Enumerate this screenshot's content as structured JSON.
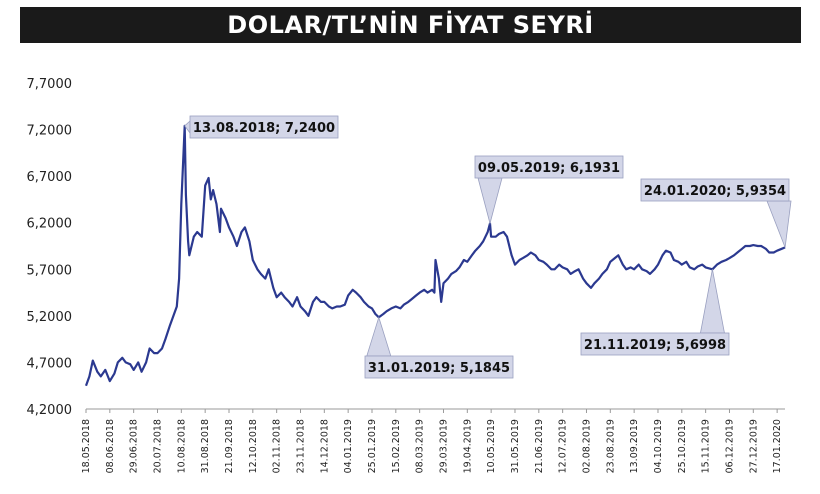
{
  "chart_data": {
    "type": "line",
    "title": "DOLAR/TL’NİN FİYAT SEYRİ",
    "xlabel": "",
    "ylabel": "",
    "ylim": [
      4.2,
      7.7
    ],
    "yticks": [
      "4,2000",
      "4,7000",
      "5,2000",
      "5,7000",
      "6,2000",
      "6,7000",
      "7,2000",
      "7,7000"
    ],
    "grid": false,
    "line_color": "#2b3990",
    "x_categories": [
      "18.05.2018",
      "08.06.2018",
      "29.06.2018",
      "20.07.2018",
      "10.08.2018",
      "31.08.2018",
      "21.09.2018",
      "12.10.2018",
      "02.11.2018",
      "23.11.2018",
      "14.12.2018",
      "04.01.2019",
      "25.01.2019",
      "15.02.2019",
      "08.03.2019",
      "29.03.2019",
      "19.04.2019",
      "10.05.2019",
      "31.05.2019",
      "21.06.2019",
      "12.07.2019",
      "02.08.2019",
      "23.08.2019",
      "13.09.2019",
      "04.10.2019",
      "25.10.2019",
      "15.11.2019",
      "06.12.2019",
      "27.12.2019",
      "17.01.2020"
    ],
    "series": [
      {
        "points": [
          [
            "18.05.2018",
            4.45
          ],
          [
            "21.05.2018",
            4.55
          ],
          [
            "24.05.2018",
            4.72
          ],
          [
            "28.05.2018",
            4.6
          ],
          [
            "31.05.2018",
            4.55
          ],
          [
            "04.06.2018",
            4.62
          ],
          [
            "08.06.2018",
            4.5
          ],
          [
            "12.06.2018",
            4.58
          ],
          [
            "15.06.2018",
            4.7
          ],
          [
            "19.06.2018",
            4.75
          ],
          [
            "22.06.2018",
            4.7
          ],
          [
            "26.06.2018",
            4.68
          ],
          [
            "29.06.2018",
            4.62
          ],
          [
            "03.07.2018",
            4.7
          ],
          [
            "06.07.2018",
            4.6
          ],
          [
            "10.07.2018",
            4.7
          ],
          [
            "13.07.2018",
            4.85
          ],
          [
            "17.07.2018",
            4.8
          ],
          [
            "20.07.2018",
            4.8
          ],
          [
            "24.07.2018",
            4.85
          ],
          [
            "27.07.2018",
            4.95
          ],
          [
            "31.07.2018",
            5.1
          ],
          [
            "03.08.2018",
            5.2
          ],
          [
            "06.08.2018",
            5.3
          ],
          [
            "08.08.2018",
            5.6
          ],
          [
            "10.08.2018",
            6.4
          ],
          [
            "13.08.2018",
            7.24
          ],
          [
            "14.08.2018",
            6.5
          ],
          [
            "16.08.2018",
            6.0
          ],
          [
            "17.08.2018",
            5.85
          ],
          [
            "21.08.2018",
            6.05
          ],
          [
            "24.08.2018",
            6.1
          ],
          [
            "28.08.2018",
            6.05
          ],
          [
            "31.08.2018",
            6.6
          ],
          [
            "03.09.2018",
            6.68
          ],
          [
            "05.09.2018",
            6.45
          ],
          [
            "07.09.2018",
            6.55
          ],
          [
            "10.09.2018",
            6.4
          ],
          [
            "13.09.2018",
            6.1
          ],
          [
            "14.09.2018",
            6.35
          ],
          [
            "18.09.2018",
            6.25
          ],
          [
            "21.09.2018",
            6.15
          ],
          [
            "25.09.2018",
            6.05
          ],
          [
            "28.09.2018",
            5.95
          ],
          [
            "02.10.2018",
            6.1
          ],
          [
            "05.10.2018",
            6.15
          ],
          [
            "09.10.2018",
            6.0
          ],
          [
            "12.10.2018",
            5.8
          ],
          [
            "16.10.2018",
            5.7
          ],
          [
            "19.10.2018",
            5.65
          ],
          [
            "23.10.2018",
            5.6
          ],
          [
            "26.10.2018",
            5.7
          ],
          [
            "30.10.2018",
            5.5
          ],
          [
            "02.11.2018",
            5.4
          ],
          [
            "06.11.2018",
            5.45
          ],
          [
            "09.11.2018",
            5.4
          ],
          [
            "13.11.2018",
            5.35
          ],
          [
            "16.11.2018",
            5.3
          ],
          [
            "20.11.2018",
            5.4
          ],
          [
            "23.11.2018",
            5.3
          ],
          [
            "27.11.2018",
            5.25
          ],
          [
            "30.11.2018",
            5.2
          ],
          [
            "04.12.2018",
            5.35
          ],
          [
            "07.12.2018",
            5.4
          ],
          [
            "11.12.2018",
            5.35
          ],
          [
            "14.12.2018",
            5.35
          ],
          [
            "18.12.2018",
            5.3
          ],
          [
            "21.12.2018",
            5.28
          ],
          [
            "25.12.2018",
            5.3
          ],
          [
            "28.12.2018",
            5.3
          ],
          [
            "01.01.2019",
            5.32
          ],
          [
            "04.01.2019",
            5.42
          ],
          [
            "08.01.2019",
            5.48
          ],
          [
            "11.01.2019",
            5.45
          ],
          [
            "15.01.2019",
            5.4
          ],
          [
            "18.01.2019",
            5.35
          ],
          [
            "22.01.2019",
            5.3
          ],
          [
            "25.01.2019",
            5.28
          ],
          [
            "28.01.2019",
            5.22
          ],
          [
            "31.01.2019",
            5.1845
          ],
          [
            "04.02.2019",
            5.22
          ],
          [
            "07.02.2019",
            5.25
          ],
          [
            "11.02.2019",
            5.28
          ],
          [
            "15.02.2019",
            5.3
          ],
          [
            "19.02.2019",
            5.28
          ],
          [
            "22.02.2019",
            5.32
          ],
          [
            "26.02.2019",
            5.35
          ],
          [
            "01.03.2019",
            5.38
          ],
          [
            "05.03.2019",
            5.42
          ],
          [
            "08.03.2019",
            5.45
          ],
          [
            "12.03.2019",
            5.48
          ],
          [
            "15.03.2019",
            5.45
          ],
          [
            "19.03.2019",
            5.48
          ],
          [
            "21.03.2019",
            5.45
          ],
          [
            "22.03.2019",
            5.8
          ],
          [
            "25.03.2019",
            5.6
          ],
          [
            "27.03.2019",
            5.35
          ],
          [
            "29.03.2019",
            5.55
          ],
          [
            "02.04.2019",
            5.6
          ],
          [
            "05.04.2019",
            5.65
          ],
          [
            "09.04.2019",
            5.68
          ],
          [
            "12.04.2019",
            5.72
          ],
          [
            "16.04.2019",
            5.8
          ],
          [
            "19.04.2019",
            5.78
          ],
          [
            "23.04.2019",
            5.85
          ],
          [
            "26.04.2019",
            5.9
          ],
          [
            "30.04.2019",
            5.95
          ],
          [
            "03.05.2019",
            6.0
          ],
          [
            "07.05.2019",
            6.1
          ],
          [
            "09.05.2019",
            6.1931
          ],
          [
            "10.05.2019",
            6.05
          ],
          [
            "14.05.2019",
            6.05
          ],
          [
            "17.05.2019",
            6.08
          ],
          [
            "21.05.2019",
            6.1
          ],
          [
            "24.05.2019",
            6.05
          ],
          [
            "28.05.2019",
            5.85
          ],
          [
            "31.05.2019",
            5.75
          ],
          [
            "04.06.2019",
            5.8
          ],
          [
            "07.06.2019",
            5.82
          ],
          [
            "11.06.2019",
            5.85
          ],
          [
            "14.06.2019",
            5.88
          ],
          [
            "18.06.2019",
            5.85
          ],
          [
            "21.06.2019",
            5.8
          ],
          [
            "25.06.2019",
            5.78
          ],
          [
            "28.06.2019",
            5.75
          ],
          [
            "02.07.2019",
            5.7
          ],
          [
            "05.07.2019",
            5.7
          ],
          [
            "09.07.2019",
            5.75
          ],
          [
            "12.07.2019",
            5.72
          ],
          [
            "16.07.2019",
            5.7
          ],
          [
            "19.07.2019",
            5.65
          ],
          [
            "23.07.2019",
            5.68
          ],
          [
            "26.07.2019",
            5.7
          ],
          [
            "30.07.2019",
            5.6
          ],
          [
            "02.08.2019",
            5.55
          ],
          [
            "06.08.2019",
            5.5
          ],
          [
            "09.08.2019",
            5.55
          ],
          [
            "13.08.2019",
            5.6
          ],
          [
            "16.08.2019",
            5.65
          ],
          [
            "20.08.2019",
            5.7
          ],
          [
            "23.08.2019",
            5.78
          ],
          [
            "27.08.2019",
            5.82
          ],
          [
            "30.08.2019",
            5.85
          ],
          [
            "03.09.2019",
            5.75
          ],
          [
            "06.09.2019",
            5.7
          ],
          [
            "10.09.2019",
            5.72
          ],
          [
            "13.09.2019",
            5.7
          ],
          [
            "17.09.2019",
            5.75
          ],
          [
            "20.09.2019",
            5.7
          ],
          [
            "24.09.2019",
            5.68
          ],
          [
            "27.09.2019",
            5.65
          ],
          [
            "01.10.2019",
            5.7
          ],
          [
            "04.10.2019",
            5.75
          ],
          [
            "08.10.2019",
            5.85
          ],
          [
            "11.10.2019",
            5.9
          ],
          [
            "15.10.2019",
            5.88
          ],
          [
            "18.10.2019",
            5.8
          ],
          [
            "22.10.2019",
            5.78
          ],
          [
            "25.10.2019",
            5.75
          ],
          [
            "29.10.2019",
            5.78
          ],
          [
            "01.11.2019",
            5.72
          ],
          [
            "05.11.2019",
            5.7
          ],
          [
            "08.11.2019",
            5.73
          ],
          [
            "12.11.2019",
            5.75
          ],
          [
            "15.11.2019",
            5.72
          ],
          [
            "21.11.2019",
            5.6998
          ],
          [
            "25.11.2019",
            5.75
          ],
          [
            "29.11.2019",
            5.78
          ],
          [
            "03.12.2019",
            5.8
          ],
          [
            "06.12.2019",
            5.82
          ],
          [
            "10.12.2019",
            5.85
          ],
          [
            "13.12.2019",
            5.88
          ],
          [
            "17.12.2019",
            5.92
          ],
          [
            "20.12.2019",
            5.95
          ],
          [
            "24.12.2019",
            5.95
          ],
          [
            "27.12.2019",
            5.96
          ],
          [
            "31.12.2019",
            5.95
          ],
          [
            "03.01.2020",
            5.95
          ],
          [
            "07.01.2020",
            5.92
          ],
          [
            "10.01.2020",
            5.88
          ],
          [
            "14.01.2020",
            5.88
          ],
          [
            "17.01.2020",
            5.9
          ],
          [
            "21.01.2020",
            5.92
          ],
          [
            "24.01.2020",
            5.9354
          ]
        ]
      }
    ],
    "annotations": [
      {
        "date": "13.08.2018",
        "value": 7.24,
        "label": "13.08.2018; 7,2400"
      },
      {
        "date": "31.01.2019",
        "value": 5.1845,
        "label": "31.01.2019; 5,1845"
      },
      {
        "date": "09.05.2019",
        "value": 6.1931,
        "label": "09.05.2019; 6,1931"
      },
      {
        "date": "21.11.2019",
        "value": 5.6998,
        "label": "21.11.2019; 5,6998"
      },
      {
        "date": "24.01.2020",
        "value": 5.9354,
        "label": "24.01.2020; 5,9354"
      }
    ]
  }
}
